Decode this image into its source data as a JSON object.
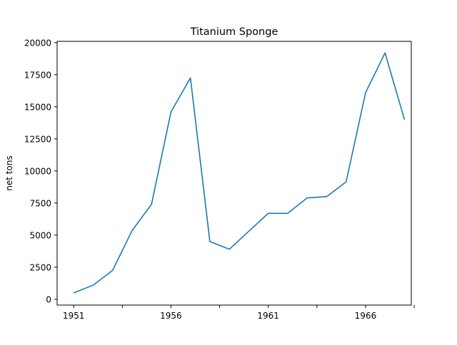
{
  "chart_data": {
    "type": "line",
    "title": "Titanium Sponge",
    "xlabel": "",
    "ylabel": "net tons",
    "x": [
      1951,
      1952,
      1953,
      1954,
      1955,
      1956,
      1957,
      1958,
      1959,
      1960,
      1961,
      1962,
      1963,
      1964,
      1965,
      1966,
      1967,
      1968
    ],
    "x_ticks": [
      1951,
      1956,
      1961,
      1966
    ],
    "x_minor_ticks": [
      1953.5,
      1958.5,
      1963.5,
      1968.5
    ],
    "xlim": [
      1950.15,
      1968.35
    ],
    "y_ticks": [
      0,
      2500,
      5000,
      7500,
      10000,
      12500,
      15000,
      17500,
      20000
    ],
    "ylim": [
      -450,
      20100
    ],
    "series": [
      {
        "color": "#1f77b4",
        "values": [
          500,
          1100,
          2250,
          5350,
          7400,
          14600,
          17250,
          4500,
          3900,
          5300,
          6700,
          6700,
          7900,
          8000,
          9150,
          16100,
          19200,
          14000
        ]
      }
    ],
    "grid": false,
    "legend": "none"
  }
}
